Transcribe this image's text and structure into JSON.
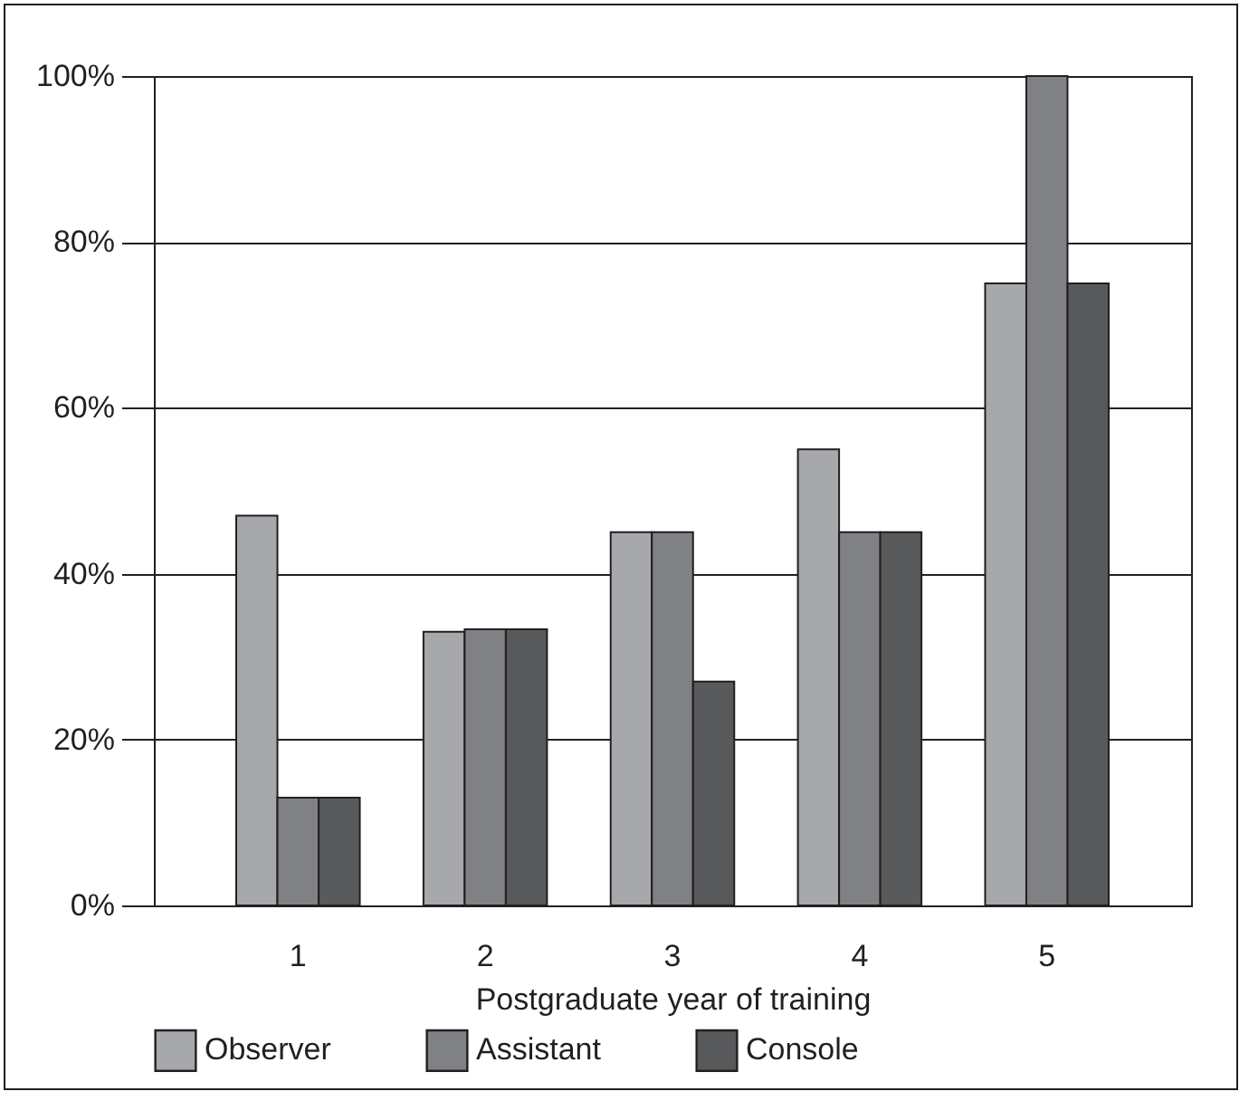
{
  "chart_data": {
    "type": "bar",
    "xlabel": "Postgraduate year of training",
    "categories": [
      "1",
      "2",
      "3",
      "4",
      "5"
    ],
    "series": [
      {
        "name": "Observer",
        "color": "#a7a8ab",
        "values": [
          47,
          33,
          45,
          55,
          75
        ]
      },
      {
        "name": "Assistant",
        "color": "#808184",
        "values": [
          13,
          33.3,
          45,
          45,
          100
        ]
      },
      {
        "name": "Console",
        "color": "#58595b",
        "values": [
          13,
          33.3,
          27,
          45,
          75
        ]
      }
    ],
    "ylim": [
      0,
      100
    ],
    "yticks": [
      {
        "value": 0,
        "label": "0%"
      },
      {
        "value": 20,
        "label": "20%"
      },
      {
        "value": 40,
        "label": "40%"
      },
      {
        "value": 60,
        "label": "60%"
      },
      {
        "value": 80,
        "label": "80%"
      },
      {
        "value": 100,
        "label": "100%"
      }
    ],
    "grid": "y",
    "legend": "bottom"
  }
}
